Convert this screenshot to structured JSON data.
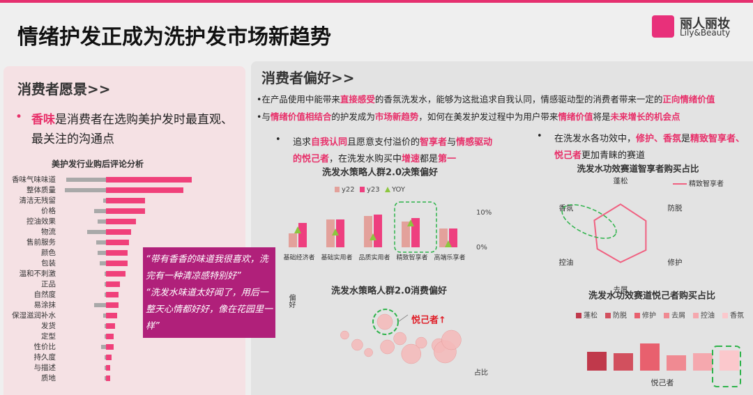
{
  "header": {
    "title": "情绪护发正成为洗护发市场新趋势",
    "logo_cn": "丽人丽妆",
    "logo_en": "Lily&Beauty"
  },
  "left_panel": {
    "heading": "消费者愿景>>",
    "bullet": [
      {
        "text": "香味",
        "highlight": true
      },
      {
        "text": "是消费者在选购美护发时最直观、最关注的沟通点"
      }
    ],
    "chart": {
      "type": "bar",
      "orientation": "horizontal",
      "title": "美护发行业购后评论分析",
      "categories": [
        "香味气味味道",
        "整体质量",
        "清洁无残留",
        "价格",
        "控油效果",
        "物流",
        "售前服务",
        "颜色",
        "包装",
        "温和不刺激",
        "正品",
        "自然度",
        "易涂抹",
        "保湿滋润补水",
        "发货",
        "定型",
        "性价比",
        "持久度",
        "与描述",
        "质地"
      ],
      "series": [
        {
          "color": "#a9a9a9",
          "values": [
            57,
            59,
            4,
            17,
            12,
            27,
            14,
            12,
            9,
            2,
            2,
            2,
            17,
            4,
            2,
            2,
            7,
            2,
            2,
            2
          ]
        },
        {
          "color": "#f0407a",
          "values": [
            123,
            111,
            56,
            56,
            43,
            36,
            33,
            31,
            31,
            28,
            20,
            18,
            18,
            16,
            13,
            11,
            11,
            8,
            6,
            6
          ]
        }
      ]
    },
    "quotes": [
      "“带有香香的味道我很喜欢，洗完有一种清凉感特别好”",
      "“洗发水味道太好闻了，用后一整天心情都好好，像在花园里一样”"
    ]
  },
  "right_panel": {
    "heading": "消费者偏好>>",
    "lines": [
      [
        {
          "text": "•在产品使用中能带来"
        },
        {
          "text": "直接感受",
          "highlight": true
        },
        {
          "text": "的香氛洗发水，能够为这批追求自我认同，情感驱动型的消费者带来一定的"
        },
        {
          "text": "正向情绪价值",
          "highlight": true
        }
      ],
      [
        {
          "text": "•与"
        },
        {
          "text": "情绪价值相结合",
          "highlight": true
        },
        {
          "text": "的护发成为"
        },
        {
          "text": "市场新趋势",
          "highlight": true
        },
        {
          "text": "，如何在美发护发过程中为用户带来"
        },
        {
          "text": "情绪价值",
          "highlight": true
        },
        {
          "text": "将是"
        },
        {
          "text": "未来增长的机会点",
          "highlight": true
        }
      ]
    ],
    "left_bullet": [
      {
        "text": "追求"
      },
      {
        "text": "自我认同",
        "highlight": true
      },
      {
        "text": "且愿意支付溢价的"
      },
      {
        "text": "智享者",
        "highlight": true
      },
      {
        "text": "与"
      },
      {
        "text": "情感驱动的悦己者",
        "highlight": true
      },
      {
        "text": "，在洗发水购买中"
      },
      {
        "text": "增速",
        "highlight": true
      },
      {
        "text": "都是"
      },
      {
        "text": "第一",
        "highlight": true
      }
    ],
    "right_bullet": [
      {
        "text": "在洗发水各功效中，"
      },
      {
        "text": "修护、香氛",
        "highlight": true
      },
      {
        "text": "是"
      },
      {
        "text": "精致智享者、悦己者",
        "highlight": true
      },
      {
        "text": "更加青睐的赛道"
      }
    ],
    "decision_chart": {
      "type": "bar",
      "title": "洗发水策略人群2.0决策偏好",
      "categories": [
        "基础经济者",
        "基础实用者",
        "品质实用者",
        "精致智享者",
        "高端乐享者"
      ],
      "series": [
        {
          "name": "y22",
          "color": "#e3a19b",
          "values": [
            20,
            40,
            45,
            37,
            27
          ]
        },
        {
          "name": "y23",
          "color": "#ee3f7f",
          "values": [
            35,
            40,
            47,
            42,
            27
          ]
        },
        {
          "name": "YOY",
          "color": "#8cc63f",
          "axis": "y2",
          "marker": "triangle",
          "values": [
            5,
            4.4,
            3,
            7,
            1
          ]
        }
      ],
      "y2lim": [
        0,
        10
      ],
      "y2ticks": [
        {
          "value": 10,
          "label": "10%"
        },
        {
          "value": 0,
          "label": "0%"
        }
      ]
    },
    "consumption_chart": {
      "type": "scatter",
      "title": "洗发水策略人群2.0消费偏好",
      "x_label": "占比",
      "y_label": "偏好",
      "annotation": "悦己者↑",
      "color": "#f5b8b8",
      "x": [
        8,
        18,
        27,
        40,
        42,
        52,
        61,
        69,
        83,
        88,
        93
      ],
      "y": [
        49,
        35,
        24,
        68,
        32,
        44,
        22,
        38,
        34,
        25,
        42
      ],
      "sizes": [
        6,
        8,
        6,
        11,
        10,
        9,
        14,
        8,
        10,
        16,
        14
      ]
    },
    "radar_chart": {
      "type": "radar",
      "title": "洗发水功效赛道智享者购买占比",
      "categories": [
        "蓬松",
        "防脱",
        "修护",
        "去屑",
        "控油",
        "香氛"
      ],
      "series": [
        {
          "name": "精致智享者",
          "color": "#f06080",
          "values": [
            64,
            60,
            60,
            55,
            55,
            62
          ]
        }
      ]
    },
    "efficacy_chart": {
      "type": "bar",
      "title": "洗发水功效赛道悦己者购买占比",
      "categories": [
        "悦己者"
      ],
      "series": [
        {
          "name": "蓬松",
          "color": "#c0394b",
          "values": [
            27
          ]
        },
        {
          "name": "防脱",
          "color": "#d2505e",
          "values": [
            25
          ]
        },
        {
          "name": "修护",
          "color": "#e8606e",
          "values": [
            39
          ]
        },
        {
          "name": "去屑",
          "color": "#f08a92",
          "values": [
            22
          ]
        },
        {
          "name": "控油",
          "color": "#f5a8ae",
          "values": [
            25
          ]
        },
        {
          "name": "香氛",
          "color": "#fbc8cc",
          "values": [
            29
          ]
        }
      ]
    }
  }
}
